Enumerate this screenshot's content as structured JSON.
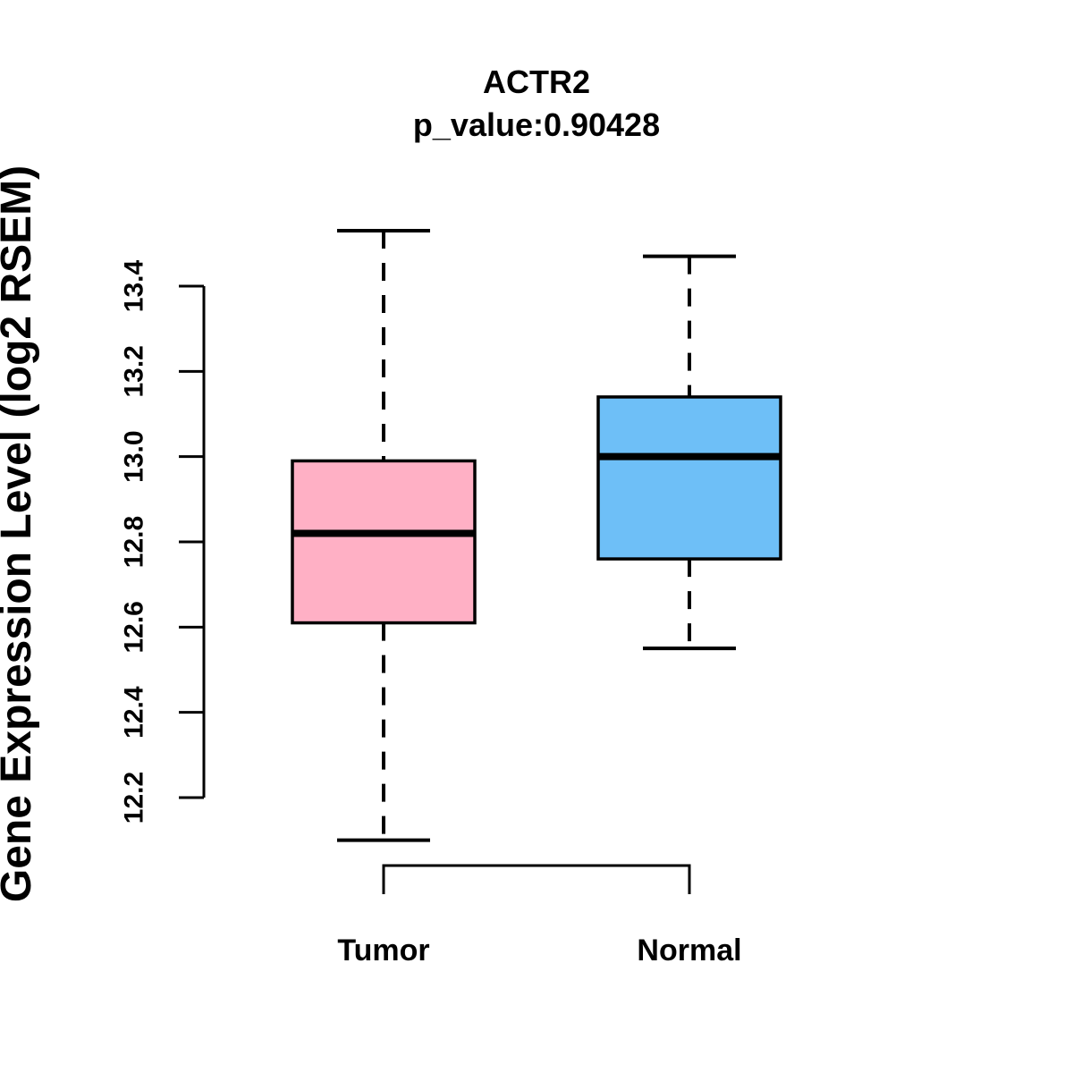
{
  "figure": {
    "title": "ACTR2",
    "subtitle": "p_value:0.90428",
    "ylabel": "Gene Expression Level (log2 RSEM)"
  },
  "chart_data": {
    "type": "boxplot",
    "title": "ACTR2",
    "subtitle": "p_value:0.90428",
    "xlabel": "",
    "ylabel": "Gene Expression Level (log2 RSEM)",
    "categories": [
      "Tumor",
      "Normal"
    ],
    "series": [
      {
        "name": "Tumor",
        "color": "#FFB0C5",
        "lower_whisker": 12.1,
        "q1": 12.61,
        "median": 12.82,
        "q3": 12.99,
        "upper_whisker": 13.53
      },
      {
        "name": "Normal",
        "color": "#6EBFF7",
        "lower_whisker": 12.55,
        "q1": 12.76,
        "median": 13.0,
        "q3": 13.14,
        "upper_whisker": 13.47
      }
    ],
    "y_ticks": [
      12.2,
      12.4,
      12.6,
      12.8,
      13.0,
      13.2,
      13.4
    ],
    "ylim": [
      12.2,
      13.4
    ],
    "grid": false,
    "legend": "none",
    "colors": {
      "box_border": "#000000",
      "median_line": "#000000",
      "whisker": "#000000",
      "axis": "#000000",
      "text": "#000000",
      "background": "#FFFFFF"
    }
  }
}
